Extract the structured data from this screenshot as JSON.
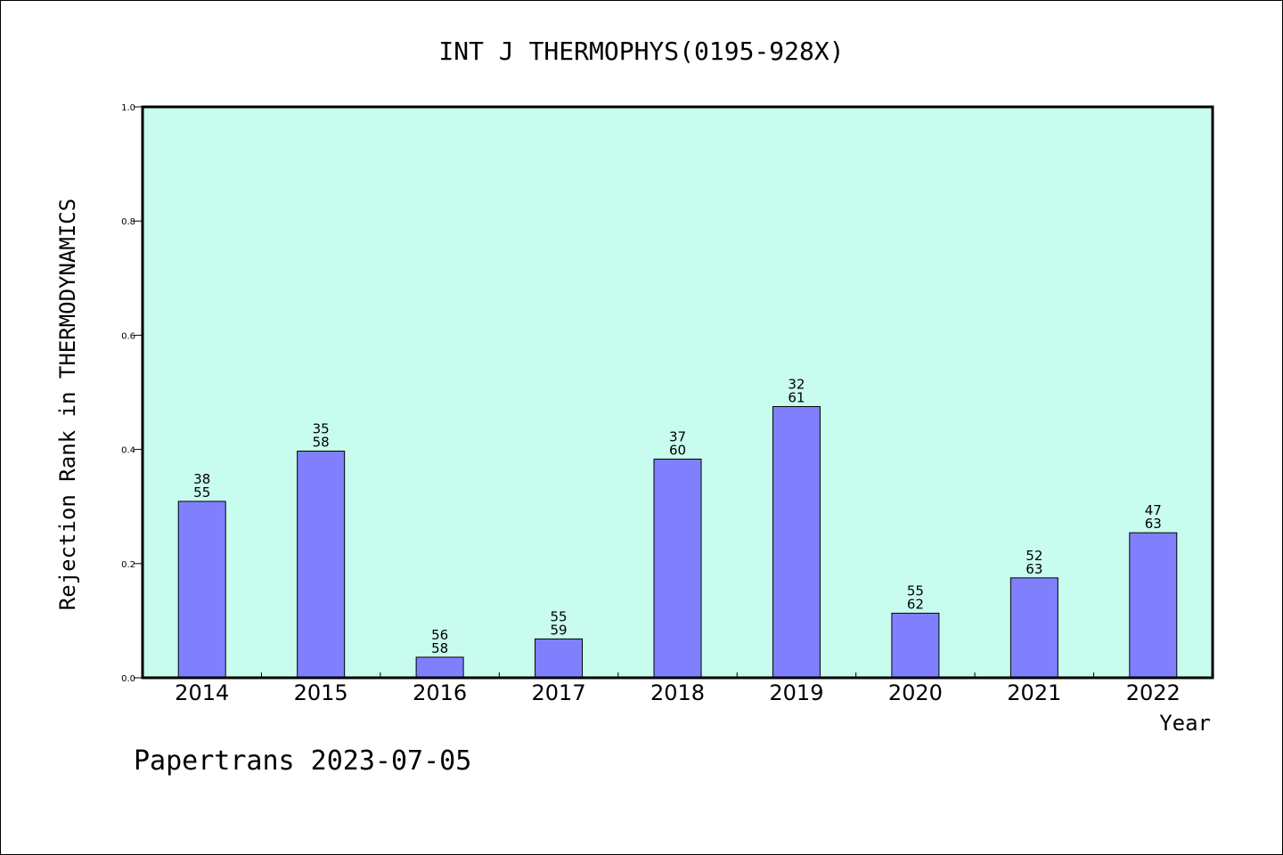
{
  "chart_data": {
    "type": "bar",
    "title": "INT J THERMOPHYS(0195-928X)",
    "xlabel": "Year",
    "ylabel": "Rejection Rank in THERMODYNAMICS",
    "ylim": [
      0,
      1.0
    ],
    "yticks": [
      "0.0",
      "0.2",
      "0.4",
      "0.6",
      "0.8",
      "1.0"
    ],
    "categories": [
      "2014",
      "2015",
      "2016",
      "2017",
      "2018",
      "2019",
      "2020",
      "2021",
      "2022"
    ],
    "values": [
      0.309,
      0.397,
      0.036,
      0.068,
      0.383,
      0.475,
      0.113,
      0.175,
      0.254
    ],
    "labels_top": [
      "38",
      "35",
      "56",
      "55",
      "37",
      "32",
      "55",
      "52",
      "47"
    ],
    "labels_bottom": [
      "55",
      "58",
      "58",
      "59",
      "60",
      "61",
      "62",
      "63",
      "63"
    ],
    "grid": false,
    "colors": {
      "plot_background": "#c8fcee",
      "bar_fill": "#8080ff",
      "bar_stroke": "#000000"
    }
  },
  "footer": {
    "text": "Papertrans 2023-07-05"
  }
}
